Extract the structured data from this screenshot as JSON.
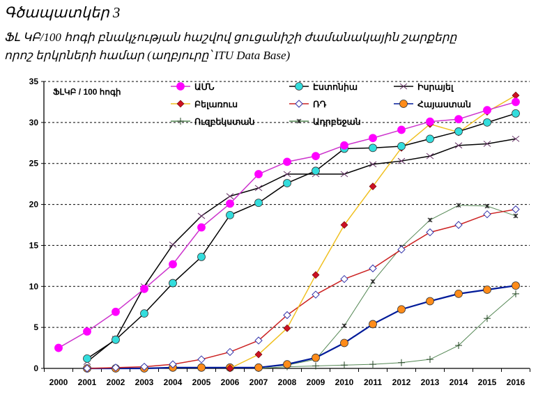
{
  "figure": {
    "title": "Գծապատկեր 3",
    "subtitle_line1": "ՖԼ ԿԲ/100 հոգի բնակչության հաշվով  ցուցանիշի ժամանակային շարքերը",
    "subtitle_line2": "որոշ երկրների համար (աղբյուրը՝ ITU Data Base)"
  },
  "chart_data": {
    "type": "line",
    "title": "Գծապատկեր 3",
    "subtitle": "ՖԼ ԿԲ/100 հոգի բնակչության հաշվով  ցուցանիշի ժամանակային շարքերը որոշ երկրների համար (աղբյուրը՝ ITU Data Base)",
    "ylabel": "ՖԼԿԲ / 100 հոգի",
    "xlabel": "",
    "ylim": [
      0,
      35
    ],
    "yticks": [
      0,
      5,
      10,
      15,
      20,
      25,
      30,
      35
    ],
    "grid": "horizontal-dashed",
    "legend_position": "top",
    "x": [
      "2000",
      "2001",
      "2002",
      "2003",
      "2004",
      "2005",
      "2006",
      "2007",
      "2008",
      "2009",
      "2010",
      "2011",
      "2012",
      "2013",
      "2014",
      "2015",
      "2016"
    ],
    "series": [
      {
        "name": "ԱՄՆ",
        "line_color": "#cc33cc",
        "marker": "circle",
        "marker_color": "#ff00ff",
        "values": [
          2.5,
          4.5,
          6.9,
          9.7,
          12.7,
          17.2,
          20.1,
          23.7,
          25.2,
          25.9,
          27.2,
          28.1,
          29.1,
          30.1,
          30.4,
          31.5,
          32.5
        ]
      },
      {
        "name": "Էստոնիա",
        "line_color": "#000000",
        "marker": "circle",
        "marker_color": "#33dddd",
        "values": [
          null,
          1.2,
          3.5,
          6.7,
          10.4,
          13.6,
          18.7,
          20.2,
          22.6,
          24.1,
          26.8,
          26.9,
          27.1,
          28.0,
          28.9,
          30.0,
          31.1
        ]
      },
      {
        "name": "Իսրայել",
        "line_color": "#000000",
        "marker": "x",
        "marker_color": "#663366",
        "values": [
          null,
          0.8,
          3.6,
          10.0,
          15.1,
          18.6,
          21.0,
          22.0,
          23.7,
          23.7,
          23.7,
          24.9,
          25.3,
          25.9,
          27.2,
          27.4,
          28.0
        ]
      },
      {
        "name": "Բելառուս",
        "line_color": "#f0c020",
        "marker": "diamond",
        "marker_color": "#cc1122",
        "values": [
          null,
          null,
          null,
          null,
          null,
          null,
          0.0,
          1.7,
          4.9,
          11.4,
          17.5,
          22.2,
          26.9,
          29.8,
          28.8,
          31.3,
          33.3
        ]
      },
      {
        "name": "ՌԴ",
        "line_color": "#cc2222",
        "marker": "diamond-open",
        "marker_color": "#ffffff",
        "values": [
          null,
          0.0,
          0.1,
          0.2,
          0.5,
          1.1,
          2.0,
          3.4,
          6.5,
          9.0,
          10.9,
          12.2,
          14.5,
          16.6,
          17.5,
          18.8,
          19.4
        ]
      },
      {
        "name": "Հայաստան",
        "line_color": "#001a99",
        "marker": "circle",
        "marker_color": "#ff8c1a",
        "values": [
          null,
          0.0,
          0.0,
          0.0,
          0.1,
          0.1,
          0.1,
          0.1,
          0.5,
          1.3,
          3.1,
          5.4,
          7.2,
          8.2,
          9.1,
          9.6,
          10.1
        ]
      },
      {
        "name": "Ուզբեկստան",
        "line_color": "#558855",
        "marker": "plus",
        "marker_color": "#224422",
        "values": [
          null,
          null,
          null,
          null,
          null,
          null,
          null,
          0.0,
          0.2,
          0.3,
          0.4,
          0.5,
          0.7,
          1.1,
          2.8,
          6.1,
          9.1
        ]
      },
      {
        "name": "Ադրբեջան",
        "line_color": "#558855",
        "marker": "star",
        "marker_color": "#222222",
        "values": [
          null,
          null,
          null,
          null,
          null,
          null,
          null,
          0.1,
          0.4,
          1.1,
          5.2,
          10.6,
          14.8,
          18.1,
          19.9,
          19.8,
          18.6
        ]
      }
    ]
  },
  "legend_order": [
    0,
    1,
    2,
    3,
    4,
    5,
    6,
    7
  ]
}
